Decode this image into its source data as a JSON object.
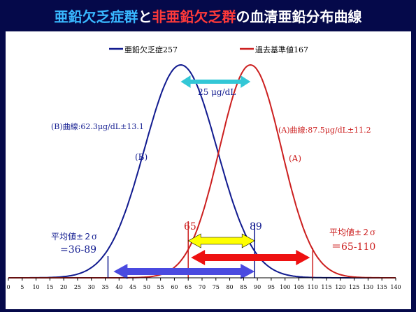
{
  "title": {
    "part1": "亜鉛欠乏症群",
    "part2": "と",
    "part3": "非亜鉛欠乏群",
    "part4": "の血清亜鉛分布曲線"
  },
  "chart_data": {
    "type": "line",
    "x_axis": {
      "min": 0,
      "max": 140,
      "ticks": [
        0,
        5,
        10,
        15,
        20,
        25,
        30,
        35,
        40,
        45,
        50,
        55,
        60,
        65,
        70,
        75,
        80,
        85,
        90,
        95,
        100,
        105,
        110,
        115,
        120,
        125,
        130,
        135,
        140
      ]
    },
    "series": [
      {
        "name": "亜鉛欠乏症257",
        "color": "#101a8f",
        "mean": 62.3,
        "sd": 13.1,
        "curve_label": "(B)"
      },
      {
        "name": "過去基準値167",
        "color": "#cc1f1f",
        "mean": 87.5,
        "sd": 11.2,
        "curve_label": "(A)"
      }
    ],
    "annotations": {
      "diff": "25 μg/dL",
      "b_curve": "(B)曲線:62.3μg/dL±13.1",
      "a_curve": "(A)曲線:87.5μg/dL±11.2",
      "b_range_label": "平均値±２σ",
      "b_range_value": "=36-89",
      "a_range_label": "平均値±２σ",
      "a_range_value": "＝65-110",
      "overlap_low": "65",
      "overlap_high": "89"
    },
    "ranges": {
      "b": [
        36,
        89
      ],
      "a": [
        65,
        110
      ],
      "overlap": [
        65,
        89
      ],
      "diff_arrow": [
        62.3,
        87.5
      ]
    },
    "colors": {
      "b_arrow": "#4a4ae0",
      "a_arrow": "#ee1111",
      "overlap_arrow": "#ffff00",
      "diff_arrow": "#33c7d6",
      "background": "#05094a"
    }
  }
}
